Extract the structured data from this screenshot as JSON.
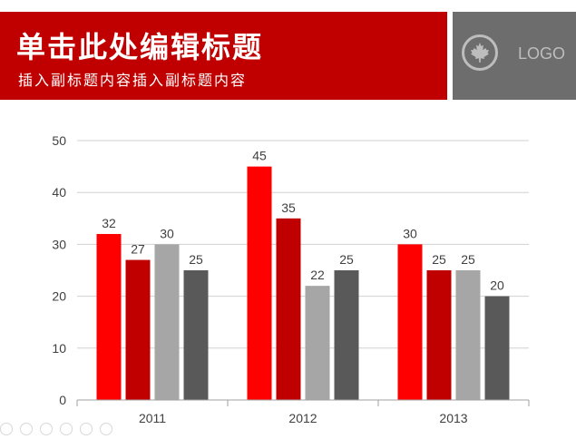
{
  "header": {
    "title": "单击此处编辑标题",
    "subtitle": "插入副标题内容插入副标题内容",
    "logo_text": "LOGO",
    "logo_icon": "maple-leaf-icon",
    "colors": {
      "accent": "#c00000",
      "logo_bg": "#6d6d6d"
    }
  },
  "chart_data": {
    "type": "bar",
    "categories": [
      "2011",
      "2012",
      "2013"
    ],
    "series": [
      {
        "values": [
          32,
          45,
          30
        ],
        "color": "#ff0000"
      },
      {
        "values": [
          27,
          35,
          25
        ],
        "color": "#c00000"
      },
      {
        "values": [
          30,
          22,
          25
        ],
        "color": "#a6a6a6"
      },
      {
        "values": [
          25,
          25,
          20
        ],
        "color": "#595959"
      }
    ],
    "yticks": [
      "0",
      "10",
      "20",
      "30",
      "40",
      "50"
    ],
    "ylim": [
      0,
      50
    ],
    "grid": true,
    "legend": "none",
    "data_labels": true
  }
}
